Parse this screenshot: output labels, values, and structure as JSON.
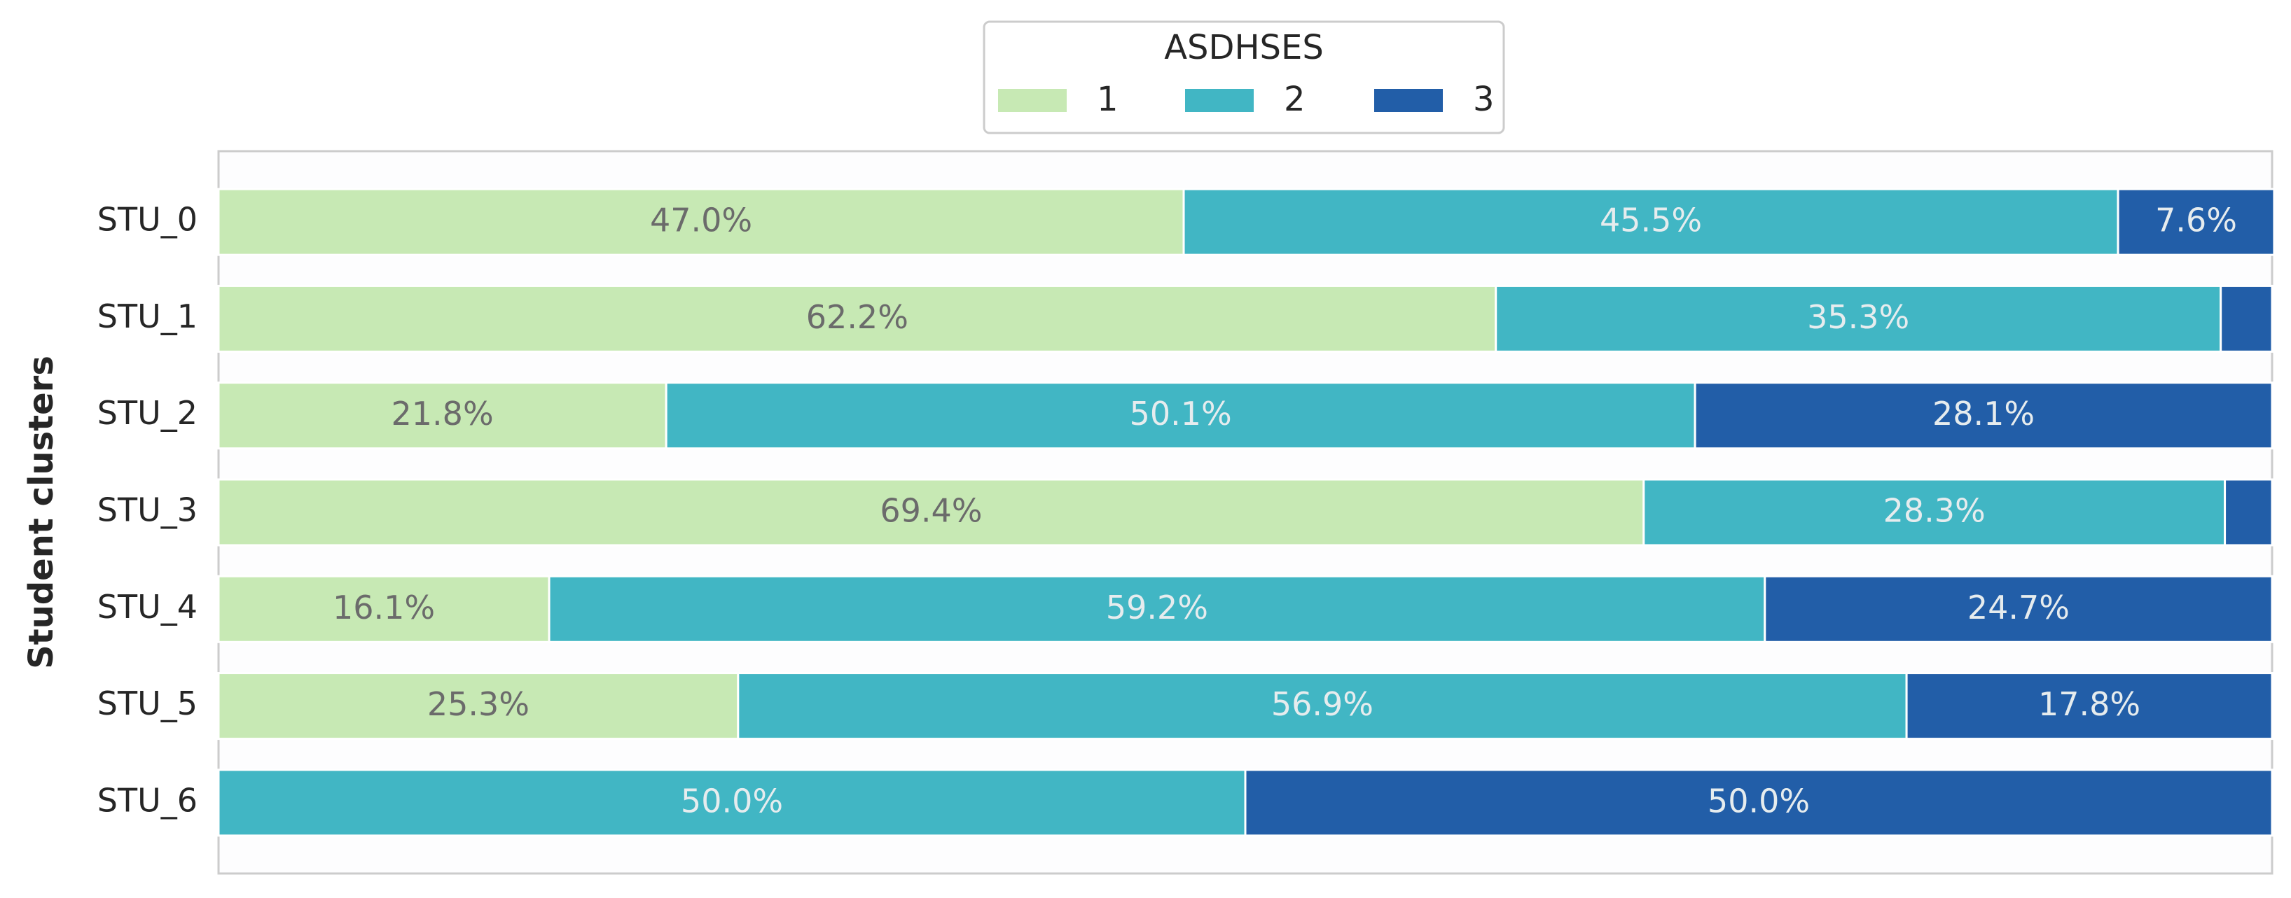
{
  "chart_data": {
    "type": "bar",
    "orientation": "horizontal",
    "stacked": true,
    "normalized": true,
    "title": "",
    "xlabel": "",
    "ylabel": "Student clusters",
    "xlim": [
      0,
      100
    ],
    "categories": [
      "STU_0",
      "STU_1",
      "STU_2",
      "STU_3",
      "STU_4",
      "STU_5",
      "STU_6"
    ],
    "legend": {
      "title": "ASDHSES",
      "placement": "top-center",
      "entries": [
        "1",
        "2",
        "3"
      ]
    },
    "series": [
      {
        "name": "1",
        "color": "#c7e9b4",
        "label_color": "#6b6b6b",
        "values": [
          47.0,
          62.2,
          21.8,
          69.4,
          16.1,
          25.3,
          0.0
        ],
        "labels": [
          "47.0%",
          "62.2%",
          "21.8%",
          "69.4%",
          "16.1%",
          "25.3%",
          ""
        ]
      },
      {
        "name": "2",
        "color": "#41b6c4",
        "label_color": "#e6ecee",
        "values": [
          45.5,
          35.3,
          50.1,
          28.3,
          59.2,
          56.9,
          50.0
        ],
        "labels": [
          "45.5%",
          "35.3%",
          "50.1%",
          "28.3%",
          "59.2%",
          "56.9%",
          "50.0%"
        ]
      },
      {
        "name": "3",
        "color": "#225ea8",
        "label_color": "#e6ecee",
        "values": [
          7.6,
          2.5,
          28.1,
          2.3,
          24.7,
          17.8,
          50.0
        ],
        "labels": [
          "7.6%",
          "",
          "28.1%",
          "",
          "24.7%",
          "17.8%",
          "50.0%"
        ]
      }
    ],
    "grid": false
  }
}
